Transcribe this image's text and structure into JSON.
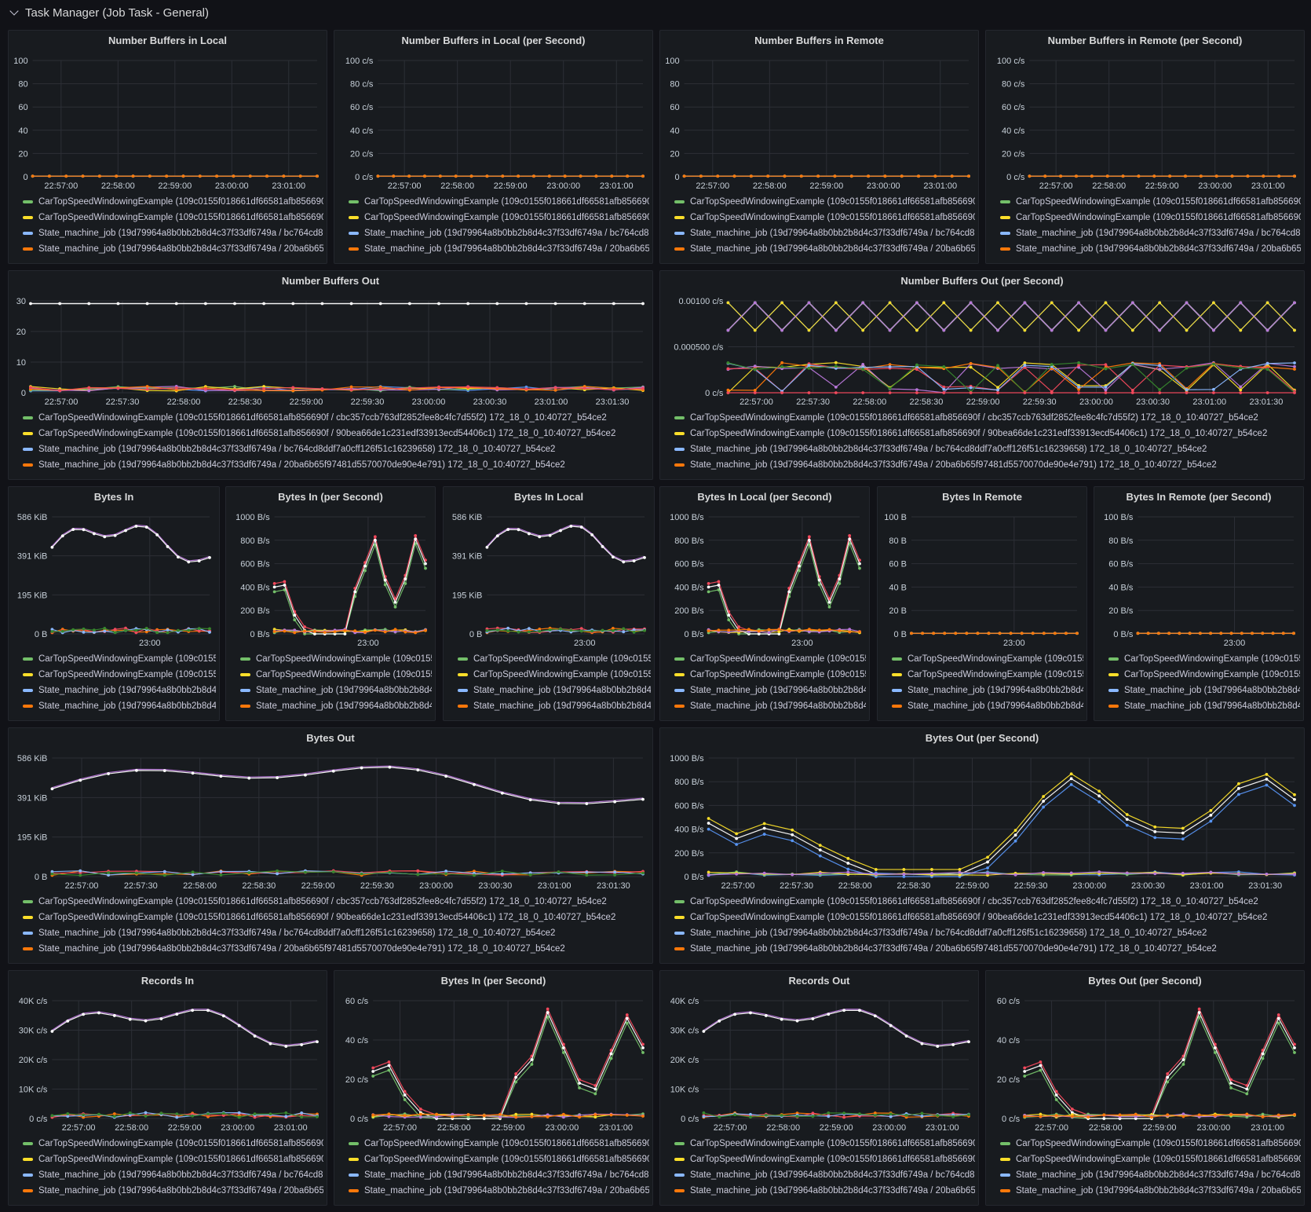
{
  "row": {
    "title": "Task Manager (Job Task - General)"
  },
  "legend_series": [
    {
      "color": "#73bf69",
      "full": "CarTopSpeedWindowingExample (109c0155f018661df66581afb856690f / cbc357ccb763df2852fee8c4fc7d55f2) 172_18_0_10:40727_b54ce2",
      "medium": "CarTopSpeedWindowingExample (109c0155f018661df66581afb856690f",
      "short": "CarTopSpeedWindowingExample (109c0155"
    },
    {
      "color": "#fade2a",
      "full": "CarTopSpeedWindowingExample (109c0155f018661df66581afb856690f / 90bea66de1c231edf33913ecd54406c1) 172_18_0_10:40727_b54ce2",
      "medium": "CarTopSpeedWindowingExample (109c0155f018661df66581afb856690f",
      "short": "CarTopSpeedWindowingExample (109c0155"
    },
    {
      "color": "#8ab8ff",
      "full": "State_machine_job (19d79964a8b0bb2b8d4c37f33df6749a / bc764cd8ddf7a0cff126f51c16239658) 172_18_0_10:40727_b54ce2",
      "medium": "State_machine_job (19d79964a8b0bb2b8d4c37f33df6749a / bc764cd8d",
      "short": "State_machine_job (19d79964a8b0bb2b8d4"
    },
    {
      "color": "#ff780a",
      "full": "State_machine_job (19d79964a8b0bb2b8d4c37f33df6749a / 20ba6b65f97481d5570070de90e4e791) 172_18_0_10:40727_b54ce2",
      "medium": "State_machine_job (19d79964a8b0bb2b8d4c37f33df6749a / 20ba6b65f",
      "short": "State_machine_job (19d79964a8b0bb2b8d4"
    }
  ],
  "panels": [
    {
      "id": "p1",
      "title": "Number Buffers in Local",
      "legend_mode": "medium",
      "chart_data": {
        "type": "line",
        "y_ticks": [
          "0",
          "20",
          "40",
          "60",
          "80",
          "100"
        ],
        "x_ticks": [
          "22:57:00",
          "22:58:00",
          "22:59:00",
          "23:00:00",
          "23:01:00"
        ],
        "profile": "flat"
      }
    },
    {
      "id": "p2",
      "title": "Number Buffers in Local (per Second)",
      "legend_mode": "medium",
      "chart_data": {
        "type": "line",
        "y_ticks": [
          "0 c/s",
          "20 c/s",
          "40 c/s",
          "60 c/s",
          "80 c/s",
          "100 c/s"
        ],
        "x_ticks": [
          "22:57:00",
          "22:58:00",
          "22:59:00",
          "23:00:00",
          "23:01:00"
        ],
        "profile": "flat"
      }
    },
    {
      "id": "p3",
      "title": "Number Buffers in Remote",
      "legend_mode": "medium",
      "chart_data": {
        "type": "line",
        "y_ticks": [
          "0",
          "20",
          "40",
          "60",
          "80",
          "100"
        ],
        "x_ticks": [
          "22:57:00",
          "22:58:00",
          "22:59:00",
          "23:00:00",
          "23:01:00"
        ],
        "profile": "flat"
      }
    },
    {
      "id": "p4",
      "title": "Number Buffers in Remote (per Second)",
      "legend_mode": "medium",
      "chart_data": {
        "type": "line",
        "y_ticks": [
          "0 c/s",
          "20 c/s",
          "40 c/s",
          "60 c/s",
          "80 c/s",
          "100 c/s"
        ],
        "x_ticks": [
          "22:57:00",
          "22:58:00",
          "22:59:00",
          "23:00:00",
          "23:01:00"
        ],
        "profile": "flat"
      }
    },
    {
      "id": "p5",
      "title": "Number Buffers Out",
      "legend_mode": "full",
      "chart_data": {
        "type": "line",
        "y_ticks": [
          "0",
          "10",
          "20",
          "30"
        ],
        "x_ticks": [
          "22:57:00",
          "22:57:30",
          "22:58:00",
          "22:58:30",
          "22:59:00",
          "22:59:30",
          "23:00:00",
          "23:00:30",
          "23:01:00",
          "23:01:30"
        ],
        "profile": "buffers_out"
      }
    },
    {
      "id": "p6",
      "title": "Number Buffers Out (per Second)",
      "legend_mode": "full",
      "chart_data": {
        "type": "line",
        "y_ticks": [
          "0 c/s",
          "0.000500 c/s",
          "0.00100 c/s"
        ],
        "x_ticks": [
          "22:57:00",
          "22:57:30",
          "22:58:00",
          "22:58:30",
          "22:59:00",
          "22:59:30",
          "23:00:00",
          "23:00:30",
          "23:01:00",
          "23:01:30"
        ],
        "profile": "zigzag"
      }
    },
    {
      "id": "p7",
      "title": "Bytes In",
      "legend_mode": "short",
      "chart_data": {
        "type": "line",
        "y_ticks": [
          "0 B",
          "195 KiB",
          "391 KiB",
          "586 KiB"
        ],
        "x_ticks": [
          "23:00"
        ],
        "profile": "bytes_smooth"
      }
    },
    {
      "id": "p8",
      "title": "Bytes In (per Second)",
      "legend_mode": "short",
      "chart_data": {
        "type": "line",
        "y_ticks": [
          "0 B/s",
          "200 B/s",
          "400 B/s",
          "600 B/s",
          "800 B/s",
          "1000 B/s"
        ],
        "x_ticks": [
          "23:00"
        ],
        "profile": "rate_spiky"
      }
    },
    {
      "id": "p9",
      "title": "Bytes In Local",
      "legend_mode": "short",
      "chart_data": {
        "type": "line",
        "y_ticks": [
          "0 B",
          "195 KiB",
          "391 KiB",
          "586 KiB"
        ],
        "x_ticks": [
          "23:00"
        ],
        "profile": "bytes_smooth"
      }
    },
    {
      "id": "p10",
      "title": "Bytes In Local (per Second)",
      "legend_mode": "short",
      "chart_data": {
        "type": "line",
        "y_ticks": [
          "0 B/s",
          "200 B/s",
          "400 B/s",
          "600 B/s",
          "800 B/s",
          "1000 B/s"
        ],
        "x_ticks": [
          "23:00"
        ],
        "profile": "rate_spiky"
      }
    },
    {
      "id": "p11",
      "title": "Bytes In Remote",
      "legend_mode": "short",
      "chart_data": {
        "type": "line",
        "y_ticks": [
          "0 B",
          "20 B",
          "40 B",
          "60 B",
          "80 B",
          "100 B"
        ],
        "x_ticks": [
          "23:00"
        ],
        "profile": "flat"
      }
    },
    {
      "id": "p12",
      "title": "Bytes In Remote (per Second)",
      "legend_mode": "short",
      "chart_data": {
        "type": "line",
        "y_ticks": [
          "0 B/s",
          "20 B/s",
          "40 B/s",
          "60 B/s",
          "80 B/s",
          "100 B/s"
        ],
        "x_ticks": [
          "23:00"
        ],
        "profile": "flat"
      }
    },
    {
      "id": "p13",
      "title": "Bytes Out",
      "legend_mode": "full",
      "chart_data": {
        "type": "line",
        "y_ticks": [
          "0 B",
          "195 KiB",
          "391 KiB",
          "586 KiB"
        ],
        "x_ticks": [
          "22:57:00",
          "22:57:30",
          "22:58:00",
          "22:58:30",
          "22:59:00",
          "22:59:30",
          "23:00:00",
          "23:00:30",
          "23:01:00",
          "23:01:30"
        ],
        "profile": "bytes_out"
      }
    },
    {
      "id": "p14",
      "title": "Bytes Out (per Second)",
      "legend_mode": "full",
      "chart_data": {
        "type": "line",
        "y_ticks": [
          "0 B/s",
          "200 B/s",
          "400 B/s",
          "600 B/s",
          "800 B/s",
          "1000 B/s"
        ],
        "x_ticks": [
          "22:57:00",
          "22:57:30",
          "22:58:00",
          "22:58:30",
          "22:59:00",
          "22:59:30",
          "23:00:00",
          "23:00:30",
          "23:01:00",
          "23:01:30"
        ],
        "profile": "rate_wide"
      }
    },
    {
      "id": "p15",
      "title": "Records In",
      "legend_mode": "medium",
      "chart_data": {
        "type": "line",
        "y_ticks": [
          "0 c/s",
          "10K c/s",
          "20K c/s",
          "30K c/s",
          "40K c/s"
        ],
        "x_ticks": [
          "22:57:00",
          "22:58:00",
          "22:59:00",
          "23:00:00",
          "23:01:00"
        ],
        "profile": "records"
      }
    },
    {
      "id": "p16",
      "title": "Bytes In (per Second)",
      "legend_mode": "medium",
      "chart_data": {
        "type": "line",
        "y_ticks": [
          "0 c/s",
          "20 c/s",
          "40 c/s",
          "60 c/s"
        ],
        "x_ticks": [
          "22:57:00",
          "22:58:00",
          "22:59:00",
          "23:00:00",
          "23:01:00"
        ],
        "profile": "rate_small"
      }
    },
    {
      "id": "p17",
      "title": "Records Out",
      "legend_mode": "medium",
      "chart_data": {
        "type": "line",
        "y_ticks": [
          "0 c/s",
          "10K c/s",
          "20K c/s",
          "30K c/s",
          "40K c/s"
        ],
        "x_ticks": [
          "22:57:00",
          "22:58:00",
          "22:59:00",
          "23:00:00",
          "23:01:00"
        ],
        "profile": "records"
      }
    },
    {
      "id": "p18",
      "title": "Bytes Out (per Second)",
      "legend_mode": "medium",
      "chart_data": {
        "type": "line",
        "y_ticks": [
          "0 c/s",
          "20 c/s",
          "40 c/s",
          "60 c/s"
        ],
        "x_ticks": [
          "22:57:00",
          "22:58:00",
          "22:59:00",
          "23:00:00",
          "23:01:00"
        ],
        "profile": "rate_small"
      }
    }
  ]
}
